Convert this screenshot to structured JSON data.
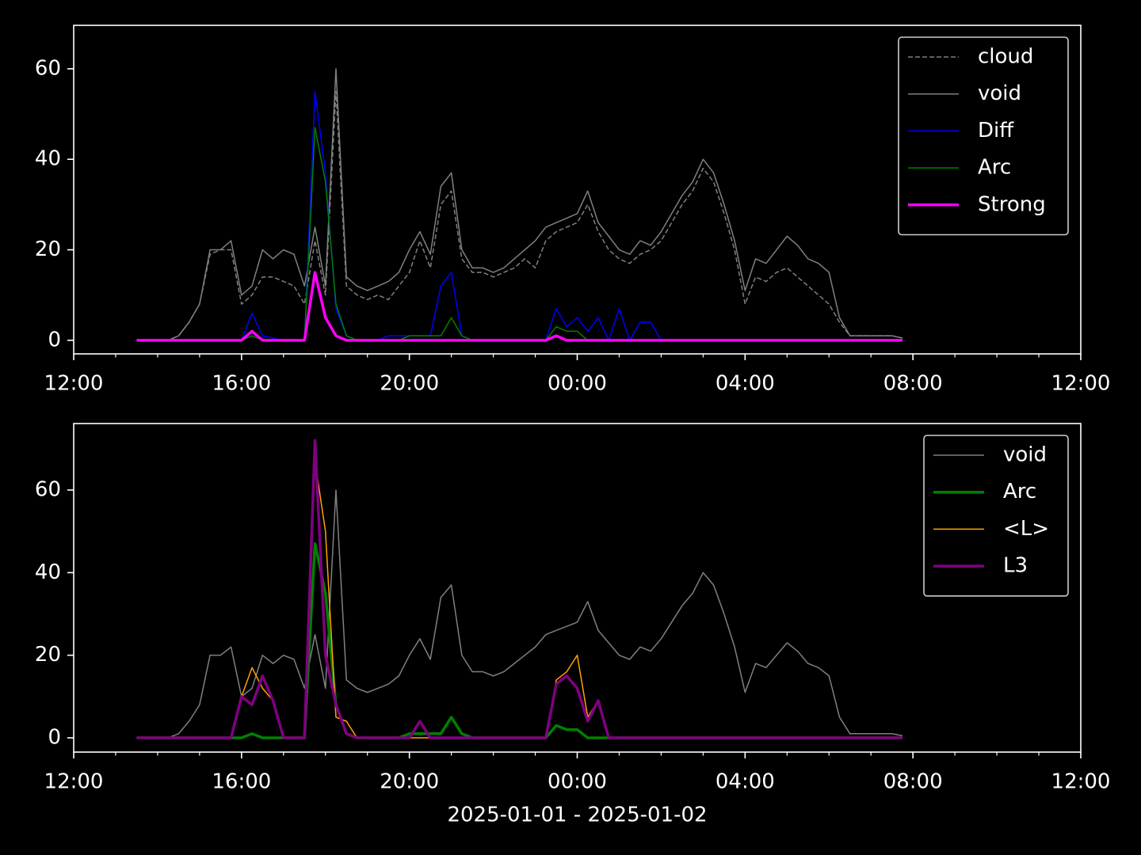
{
  "chart_data": [
    {
      "type": "line",
      "x": [
        1.5,
        1.75,
        2,
        2.25,
        2.5,
        2.75,
        3,
        3.25,
        3.5,
        3.75,
        4,
        4.25,
        4.5,
        4.75,
        5,
        5.25,
        5.5,
        5.75,
        6,
        6.25,
        6.5,
        6.75,
        7,
        7.25,
        7.5,
        7.75,
        8,
        8.25,
        8.5,
        8.75,
        9,
        9.25,
        9.5,
        9.75,
        10,
        10.25,
        10.5,
        10.75,
        11,
        11.25,
        11.5,
        11.75,
        12,
        12.25,
        12.5,
        12.75,
        13,
        13.25,
        13.5,
        13.75,
        14,
        14.25,
        14.5,
        14.75,
        15,
        15.25,
        15.5,
        15.75,
        16,
        16.25,
        16.5,
        16.75,
        17,
        17.25,
        17.5,
        17.75,
        18,
        18.25,
        18.5,
        18.75,
        19,
        19.25,
        19.5,
        19.75
      ],
      "series": [
        {
          "name": "cloud",
          "color": "#808080",
          "linestyle": "dashed",
          "linewidth": 1.5,
          "values": [
            0,
            0,
            0,
            0,
            1,
            4,
            8,
            19,
            20,
            20,
            8,
            10,
            14,
            14,
            13,
            12,
            8,
            22,
            10,
            55,
            12,
            10,
            9,
            10,
            9,
            12,
            15,
            22,
            16,
            30,
            33,
            18,
            15,
            15,
            14,
            15,
            16,
            18,
            16,
            22,
            24,
            25,
            26,
            30,
            24,
            20,
            18,
            17,
            19,
            20,
            22,
            26,
            30,
            33,
            38,
            35,
            28,
            20,
            8,
            14,
            13,
            15,
            16,
            14,
            12,
            10,
            8,
            4,
            1,
            1,
            1,
            1,
            1,
            0.5
          ]
        },
        {
          "name": "void",
          "color": "#808080",
          "linestyle": "solid",
          "linewidth": 1.5,
          "values": [
            0,
            0,
            0,
            0,
            1,
            4,
            8,
            20,
            20,
            22,
            10,
            12,
            20,
            18,
            20,
            19,
            12,
            25,
            12,
            60,
            14,
            12,
            11,
            12,
            13,
            15,
            20,
            24,
            19,
            34,
            37,
            20,
            16,
            16,
            15,
            16,
            18,
            20,
            22,
            25,
            26,
            27,
            28,
            33,
            26,
            23,
            20,
            19,
            22,
            21,
            24,
            28,
            32,
            35,
            40,
            37,
            30,
            22,
            11,
            18,
            17,
            20,
            23,
            21,
            18,
            17,
            15,
            5,
            1,
            1,
            1,
            1,
            1,
            0.5
          ]
        },
        {
          "name": "Diff",
          "color": "#0000ff",
          "linestyle": "solid",
          "linewidth": 1.5,
          "values": [
            0,
            0,
            0,
            0,
            0,
            0,
            0,
            0,
            0,
            0,
            0,
            6,
            1,
            0.5,
            0,
            0,
            0,
            55,
            37,
            7,
            1,
            0,
            0,
            0,
            1,
            1,
            1,
            1,
            1,
            12,
            15,
            1,
            0,
            0,
            0,
            0,
            0,
            0,
            0,
            0,
            7,
            3,
            5,
            2,
            5,
            0,
            7,
            0,
            4,
            4,
            0,
            0,
            0,
            0,
            0,
            0,
            0,
            0,
            0,
            0,
            0,
            0,
            0,
            0,
            0,
            0,
            0,
            0,
            0,
            0,
            0,
            0,
            0,
            0
          ]
        },
        {
          "name": "Arc",
          "color": "#008000",
          "linestyle": "solid",
          "linewidth": 1.5,
          "values": [
            0,
            0,
            0,
            0,
            0,
            0,
            0,
            0,
            0,
            0,
            0,
            1,
            0,
            0,
            0,
            0,
            0,
            47,
            35,
            8,
            1,
            0,
            0,
            0,
            0,
            0,
            1,
            1,
            1,
            1,
            5,
            1,
            0,
            0,
            0,
            0,
            0,
            0,
            0,
            0,
            3,
            2,
            2,
            0,
            0,
            0,
            0,
            0,
            0,
            0,
            0,
            0,
            0,
            0,
            0,
            0,
            0,
            0,
            0,
            0,
            0,
            0,
            0,
            0,
            0,
            0,
            0,
            0,
            0,
            0,
            0,
            0,
            0,
            0
          ]
        },
        {
          "name": "Strong",
          "color": "#ff00ff",
          "linestyle": "solid",
          "linewidth": 3.5,
          "values": [
            0,
            0,
            0,
            0,
            0,
            0,
            0,
            0,
            0,
            0,
            0,
            2,
            0,
            0,
            0,
            0,
            0,
            15,
            5,
            1,
            0,
            0,
            0,
            0,
            0,
            0,
            0,
            0,
            0,
            0,
            0,
            0,
            0,
            0,
            0,
            0,
            0,
            0,
            0,
            0,
            1,
            0,
            0,
            0,
            0,
            0,
            0,
            0,
            0,
            0,
            0,
            0,
            0,
            0,
            0,
            0,
            0,
            0,
            0,
            0,
            0,
            0,
            0,
            0,
            0,
            0,
            0,
            0,
            0,
            0,
            0,
            0,
            0,
            0
          ]
        }
      ],
      "xlim": [
        0,
        24
      ],
      "xticks": [
        {
          "value": 0,
          "label": "12:00"
        },
        {
          "value": 4,
          "label": "16:00"
        },
        {
          "value": 8,
          "label": "20:00"
        },
        {
          "value": 12,
          "label": "00:00"
        },
        {
          "value": 16,
          "label": "04:00"
        },
        {
          "value": 20,
          "label": "08:00"
        },
        {
          "value": 24,
          "label": "12:00"
        }
      ],
      "xminorticks": [
        1,
        2,
        3,
        5,
        6,
        7,
        9,
        10,
        11,
        13,
        14,
        15,
        17,
        18,
        19,
        21,
        22,
        23
      ],
      "ylim": [
        -3,
        69.6
      ],
      "yticks": [
        0,
        20,
        40,
        60
      ],
      "legend": "upper right"
    },
    {
      "type": "line",
      "x": [
        1.5,
        1.75,
        2,
        2.25,
        2.5,
        2.75,
        3,
        3.25,
        3.5,
        3.75,
        4,
        4.25,
        4.5,
        4.75,
        5,
        5.25,
        5.5,
        5.75,
        6,
        6.25,
        6.5,
        6.75,
        7,
        7.25,
        7.5,
        7.75,
        8,
        8.25,
        8.5,
        8.75,
        9,
        9.25,
        9.5,
        9.75,
        10,
        10.25,
        10.5,
        10.75,
        11,
        11.25,
        11.5,
        11.75,
        12,
        12.25,
        12.5,
        12.75,
        13,
        13.25,
        13.5,
        13.75,
        14,
        14.25,
        14.5,
        14.75,
        15,
        15.25,
        15.5,
        15.75,
        16,
        16.25,
        16.5,
        16.75,
        17,
        17.25,
        17.5,
        17.75,
        18,
        18.25,
        18.5,
        18.75,
        19,
        19.25,
        19.5,
        19.75
      ],
      "series": [
        {
          "name": "void",
          "color": "#808080",
          "linestyle": "solid",
          "linewidth": 1.5,
          "values": [
            0,
            0,
            0,
            0,
            1,
            4,
            8,
            20,
            20,
            22,
            10,
            12,
            20,
            18,
            20,
            19,
            12,
            25,
            12,
            60,
            14,
            12,
            11,
            12,
            13,
            15,
            20,
            24,
            19,
            34,
            37,
            20,
            16,
            16,
            15,
            16,
            18,
            20,
            22,
            25,
            26,
            27,
            28,
            33,
            26,
            23,
            20,
            19,
            22,
            21,
            24,
            28,
            32,
            35,
            40,
            37,
            30,
            22,
            11,
            18,
            17,
            20,
            23,
            21,
            18,
            17,
            15,
            5,
            1,
            1,
            1,
            1,
            1,
            0.5
          ]
        },
        {
          "name": "Arc",
          "color": "#008000",
          "linestyle": "solid",
          "linewidth": 3.5,
          "values": [
            0,
            0,
            0,
            0,
            0,
            0,
            0,
            0,
            0,
            0,
            0,
            1,
            0,
            0,
            0,
            0,
            0,
            47,
            35,
            8,
            1,
            0,
            0,
            0,
            0,
            0,
            1,
            1,
            1,
            1,
            5,
            1,
            0,
            0,
            0,
            0,
            0,
            0,
            0,
            0,
            3,
            2,
            2,
            0,
            0,
            0,
            0,
            0,
            0,
            0,
            0,
            0,
            0,
            0,
            0,
            0,
            0,
            0,
            0,
            0,
            0,
            0,
            0,
            0,
            0,
            0,
            0,
            0,
            0,
            0,
            0,
            0,
            0,
            0
          ]
        },
        {
          "name": "<L>",
          "color": "#ffa500",
          "linestyle": "solid",
          "linewidth": 1.5,
          "values": [
            0,
            0,
            0,
            0,
            0,
            0,
            0,
            0,
            0,
            0,
            10,
            17,
            12,
            9,
            0,
            0,
            0,
            67,
            50,
            5,
            4,
            0,
            0,
            0,
            0,
            0,
            0,
            0,
            0,
            0,
            0,
            0,
            0,
            0,
            0,
            0,
            0,
            0,
            0,
            0,
            14,
            16,
            20,
            5,
            9,
            0,
            0,
            0,
            0,
            0,
            0,
            0,
            0,
            0,
            0,
            0,
            0,
            0,
            0,
            0,
            0,
            0,
            0,
            0,
            0,
            0,
            0,
            0,
            0,
            0,
            0,
            0,
            0,
            0
          ]
        },
        {
          "name": "L3",
          "color": "#800080",
          "linestyle": "solid",
          "linewidth": 3.5,
          "values": [
            0,
            0,
            0,
            0,
            0,
            0,
            0,
            0,
            0,
            0,
            10,
            8,
            15,
            9,
            0,
            0,
            0,
            72,
            20,
            8,
            1,
            0,
            0,
            0,
            0,
            0,
            0,
            4,
            0,
            0,
            0,
            0,
            0,
            0,
            0,
            0,
            0,
            0,
            0,
            0,
            13,
            15,
            12,
            4,
            9,
            0,
            0,
            0,
            0,
            0,
            0,
            0,
            0,
            0,
            0,
            0,
            0,
            0,
            0,
            0,
            0,
            0,
            0,
            0,
            0,
            0,
            0,
            0,
            0,
            0,
            0,
            0,
            0,
            0
          ]
        }
      ],
      "xlim": [
        0,
        24
      ],
      "xticks": [
        {
          "value": 0,
          "label": "12:00"
        },
        {
          "value": 4,
          "label": "16:00"
        },
        {
          "value": 8,
          "label": "20:00"
        },
        {
          "value": 12,
          "label": "00:00"
        },
        {
          "value": 16,
          "label": "04:00"
        },
        {
          "value": 20,
          "label": "08:00"
        },
        {
          "value": 24,
          "label": "12:00"
        }
      ],
      "xminorticks": [
        1,
        2,
        3,
        5,
        6,
        7,
        9,
        10,
        11,
        13,
        14,
        15,
        17,
        18,
        19,
        21,
        22,
        23
      ],
      "ylim": [
        -3.45,
        76.1
      ],
      "yticks": [
        0,
        20,
        40,
        60
      ],
      "legend": "upper right",
      "xlabel": "2025-01-01 - 2025-01-02"
    }
  ]
}
